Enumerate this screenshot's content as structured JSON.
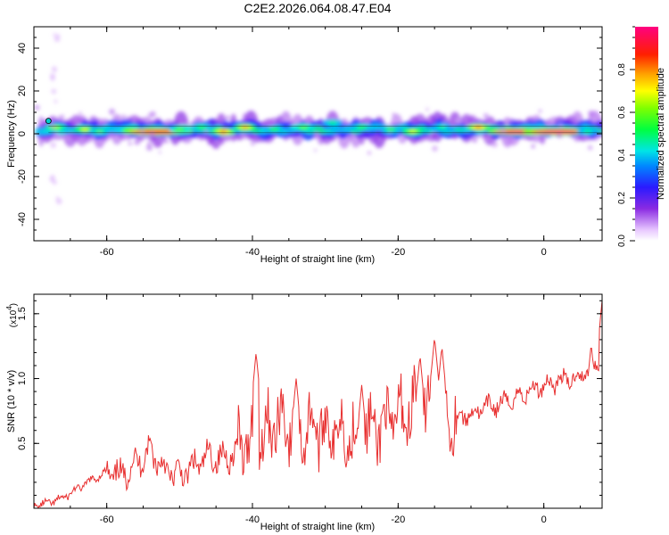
{
  "chart_data": [
    {
      "type": "heatmap",
      "title": "C2E2.2026.064.08.47.E04",
      "xlabel": "Height of straight line (km)",
      "ylabel": "Frequency (Hz)",
      "xlim": [
        -70,
        8
      ],
      "ylim": [
        -50,
        50
      ],
      "xticks": [
        -60,
        -40,
        -20,
        0
      ],
      "xtick_labels": [
        "-60",
        "-40",
        "-20",
        "0"
      ],
      "yticks": [
        -40,
        -20,
        0,
        20,
        40
      ],
      "ytick_labels": [
        "-40",
        "-20",
        "0",
        "20",
        "40"
      ],
      "colorbar": {
        "label": "Normalized spectral amplitude",
        "range": [
          0,
          1
        ],
        "ticks": [
          0.0,
          0.2,
          0.4,
          0.6,
          0.8
        ],
        "tick_labels": [
          "0.0",
          "0.2",
          "0.4",
          "0.6",
          "0.8"
        ],
        "colormap": "rainbow"
      },
      "band": {
        "center_freq_hz": 2,
        "peaks": [
          {
            "x": -67,
            "f": 3,
            "amp": 0.65
          },
          {
            "x": -63,
            "f": 2,
            "amp": 0.7
          },
          {
            "x": -61,
            "f": 1,
            "amp": 0.55
          },
          {
            "x": -57,
            "f": 2,
            "amp": 0.6
          },
          {
            "x": -53,
            "f": 1,
            "amp": 0.95
          },
          {
            "x": -50,
            "f": 2,
            "amp": 0.6
          },
          {
            "x": -47,
            "f": 3,
            "amp": 0.55
          },
          {
            "x": -44,
            "f": 1,
            "amp": 0.85
          },
          {
            "x": -41,
            "f": 3,
            "amp": 0.8
          },
          {
            "x": -37,
            "f": 2,
            "amp": 0.55
          },
          {
            "x": -33,
            "f": 3,
            "amp": 0.6
          },
          {
            "x": -29,
            "f": 5,
            "amp": 0.5
          },
          {
            "x": -25,
            "f": 3,
            "amp": 0.55
          },
          {
            "x": -21,
            "f": 2,
            "amp": 0.55
          },
          {
            "x": -18,
            "f": 1,
            "amp": 0.7
          },
          {
            "x": -14,
            "f": 3,
            "amp": 0.5
          },
          {
            "x": -9,
            "f": 3,
            "amp": 0.85
          },
          {
            "x": -3,
            "f": 1,
            "amp": 1.0
          },
          {
            "x": 2,
            "f": 1,
            "amp": 1.0
          },
          {
            "x": 6,
            "f": 1,
            "amp": 0.5
          }
        ]
      }
    },
    {
      "type": "line",
      "xlabel": "Height of straight line (km)",
      "ylabel": "SNR (10 * v/v)",
      "yscale_note": "(x10",
      "yscale_exp": "4",
      "xlim": [
        -70,
        8
      ],
      "ylim": [
        0,
        1.65
      ],
      "xticks": [
        -60,
        -40,
        -20,
        0
      ],
      "xtick_labels": [
        "-60",
        "-40",
        "-20",
        "0"
      ],
      "yticks": [
        0.5,
        1.0,
        1.5
      ],
      "ytick_labels": [
        "0.5",
        "1.0",
        "1.5"
      ],
      "series_color": "#e83030",
      "series": [
        {
          "name": "SNR",
          "x": [
            -70,
            -68,
            -66,
            -64,
            -62,
            -60,
            -58,
            -56,
            -54,
            -52,
            -50,
            -48,
            -46,
            -44,
            -42,
            -40,
            -38,
            -36,
            -34,
            -32,
            -30,
            -28,
            -26,
            -24,
            -22,
            -20,
            -18,
            -16,
            -14,
            -12,
            -10,
            -8,
            -6,
            -4,
            -2,
            0,
            2,
            4,
            6,
            8
          ],
          "values": [
            0.02,
            0.04,
            0.08,
            0.15,
            0.22,
            0.28,
            0.25,
            0.35,
            0.45,
            0.3,
            0.25,
            0.32,
            0.4,
            0.38,
            0.45,
            0.55,
            0.6,
            0.7,
            0.55,
            0.65,
            0.6,
            0.62,
            0.55,
            0.58,
            0.65,
            0.7,
            0.78,
            0.8,
            0.75,
            0.7,
            0.72,
            0.78,
            0.8,
            0.85,
            0.9,
            0.95,
            0.98,
            1.0,
            1.05,
            1.15
          ],
          "spikes": [
            {
              "x": -54,
              "v": 0.56
            },
            {
              "x": -39.5,
              "v": 1.2
            },
            {
              "x": -34,
              "v": 1.0
            },
            {
              "x": -25,
              "v": 0.95
            },
            {
              "x": -17,
              "v": 1.18
            },
            {
              "x": -15,
              "v": 1.32
            },
            {
              "x": -14,
              "v": 1.25
            },
            {
              "x": 6.5,
              "v": 1.27
            },
            {
              "x": 8,
              "v": 1.6
            }
          ]
        }
      ]
    }
  ]
}
